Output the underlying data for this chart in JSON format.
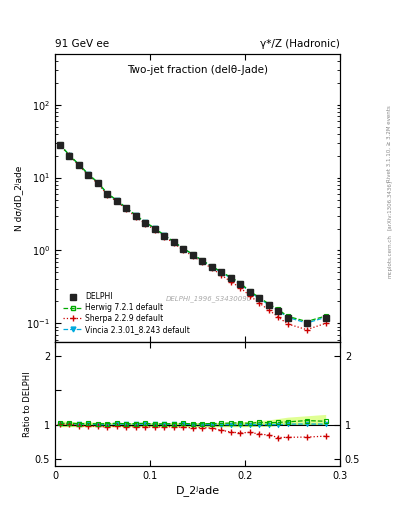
{
  "title_top_left": "91 GeV ee",
  "title_top_right": "γ*/Z (Hadronic)",
  "title_main": "Two-jet fraction (delθ-Jade)",
  "watermark": "DELPHI_1996_S3430090",
  "right_label_1": "Rivet 3.1.10, ≥ 3.2M events",
  "right_label_2": "[arXiv:1306.3436]",
  "right_label_3": "mcplots.cern.ch",
  "xlabel": "D_2ʲade",
  "ylabel_main": "N dσ/dD_2ʲade",
  "ylabel_ratio": "Ratio to DELPHI",
  "xlim": [
    0.0,
    0.3
  ],
  "ylim_main": [
    0.055,
    500
  ],
  "ylim_ratio": [
    0.4,
    2.2
  ],
  "x_data": [
    0.005,
    0.015,
    0.025,
    0.035,
    0.045,
    0.055,
    0.065,
    0.075,
    0.085,
    0.095,
    0.105,
    0.115,
    0.125,
    0.135,
    0.145,
    0.155,
    0.165,
    0.175,
    0.185,
    0.195,
    0.205,
    0.215,
    0.225,
    0.235,
    0.245,
    0.265,
    0.285
  ],
  "delphi_y": [
    28.0,
    20.0,
    15.0,
    11.0,
    8.5,
    6.0,
    4.8,
    3.8,
    3.0,
    2.4,
    2.0,
    1.6,
    1.3,
    1.05,
    0.88,
    0.72,
    0.6,
    0.5,
    0.42,
    0.35,
    0.27,
    0.22,
    0.18,
    0.15,
    0.12,
    0.1,
    0.12
  ],
  "delphi_yerr": [
    1.0,
    0.7,
    0.5,
    0.4,
    0.3,
    0.2,
    0.18,
    0.14,
    0.11,
    0.09,
    0.08,
    0.06,
    0.05,
    0.04,
    0.035,
    0.028,
    0.024,
    0.02,
    0.017,
    0.014,
    0.011,
    0.009,
    0.008,
    0.007,
    0.006,
    0.005,
    0.007
  ],
  "herwig_y": [
    28.5,
    20.5,
    15.2,
    11.2,
    8.6,
    6.1,
    4.9,
    3.85,
    3.05,
    2.45,
    2.02,
    1.62,
    1.32,
    1.07,
    0.89,
    0.73,
    0.61,
    0.51,
    0.43,
    0.36,
    0.275,
    0.228,
    0.185,
    0.155,
    0.125,
    0.106,
    0.126
  ],
  "sherpa_y": [
    28.2,
    20.2,
    14.8,
    10.8,
    8.3,
    5.8,
    4.7,
    3.7,
    2.9,
    2.32,
    1.93,
    1.55,
    1.26,
    1.01,
    0.84,
    0.69,
    0.57,
    0.46,
    0.375,
    0.308,
    0.24,
    0.19,
    0.153,
    0.122,
    0.098,
    0.082,
    0.1
  ],
  "vincia_y": [
    28.3,
    20.3,
    15.1,
    11.1,
    8.5,
    6.0,
    4.85,
    3.82,
    3.02,
    2.42,
    2.01,
    1.61,
    1.31,
    1.06,
    0.88,
    0.72,
    0.6,
    0.5,
    0.42,
    0.349,
    0.27,
    0.22,
    0.18,
    0.15,
    0.121,
    0.101,
    0.121
  ],
  "herwig_band_upper": [
    1.06,
    1.05,
    1.04,
    1.04,
    1.04,
    1.03,
    1.03,
    1.03,
    1.03,
    1.03,
    1.03,
    1.03,
    1.03,
    1.03,
    1.03,
    1.03,
    1.03,
    1.03,
    1.04,
    1.04,
    1.05,
    1.06,
    1.07,
    1.09,
    1.11,
    1.13,
    1.15
  ],
  "herwig_band_lower": [
    0.97,
    0.97,
    0.97,
    0.97,
    0.97,
    0.97,
    0.97,
    0.97,
    0.97,
    0.97,
    0.97,
    0.97,
    0.97,
    0.97,
    0.97,
    0.97,
    0.97,
    0.97,
    0.97,
    0.97,
    0.97,
    0.98,
    0.98,
    0.99,
    0.99,
    1.0,
    1.0
  ],
  "delphi_color": "#222222",
  "herwig_color": "#00aa00",
  "sherpa_color": "#cc0000",
  "vincia_color": "#00aadd",
  "herwig_band_color": "#ddff88",
  "herwig_band_inner_color": "#aade44",
  "background_color": "#ffffff"
}
